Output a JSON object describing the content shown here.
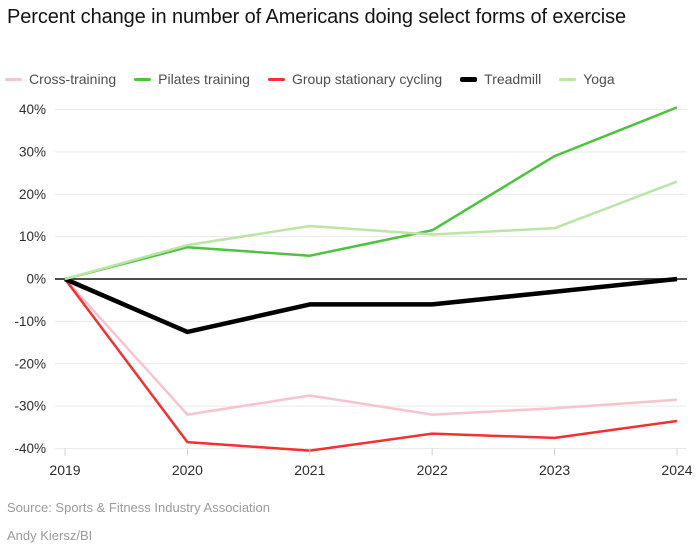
{
  "title": "Percent change in number of Americans doing select forms of exercise",
  "footer": {
    "source": "Source: Sports & Fitness Industry Association",
    "byline": "Andy Kiersz/BI"
  },
  "colors": {
    "background": "#ffffff",
    "grid": "#e9e9e9",
    "zero_line": "#4d4d4d",
    "tick": "#cfcfcf",
    "axis_text": "#2d2d2d",
    "legend_text": "#4d4d4d",
    "footer_text": "#9b9b9b",
    "title_text": "#131313"
  },
  "chart_data": {
    "type": "line",
    "title": "Percent change in number of Americans doing select forms of exercise",
    "xlabel": "",
    "ylabel": "",
    "x": [
      2019,
      2020,
      2021,
      2022,
      2023,
      2024
    ],
    "xtick_labels": [
      "2019",
      "2020",
      "2021",
      "2022",
      "2023",
      "2024"
    ],
    "yticks": [
      {
        "value": 40,
        "label": "40%"
      },
      {
        "value": 30,
        "label": "30%"
      },
      {
        "value": 20,
        "label": "20%"
      },
      {
        "value": 10,
        "label": "10%"
      },
      {
        "value": 0,
        "label": "0%"
      },
      {
        "value": -10,
        "label": "-10%"
      },
      {
        "value": -20,
        "label": "-20%"
      },
      {
        "value": -30,
        "label": "-30%"
      },
      {
        "value": -40,
        "label": "-40%"
      }
    ],
    "ylim": [
      -40,
      40
    ],
    "grid": true,
    "legend_position": "top",
    "series": [
      {
        "name": "Cross-training",
        "color": "#f9c3ce",
        "width": 2.5,
        "values": [
          0,
          -32,
          -27.5,
          -32,
          -30.5,
          -28.5
        ]
      },
      {
        "name": "Pilates training",
        "color": "#4bc43c",
        "width": 2.5,
        "values": [
          0,
          7.5,
          5.5,
          11.5,
          29,
          40.5
        ]
      },
      {
        "name": "Group stationary cycling",
        "color": "#f43030",
        "width": 2.5,
        "values": [
          0,
          -38.5,
          -40.5,
          -36.5,
          -37.5,
          -33.5
        ]
      },
      {
        "name": "Treadmill",
        "color": "#000000",
        "width": 4.5,
        "values": [
          0,
          -12.5,
          -6,
          -6,
          -3,
          0
        ]
      },
      {
        "name": "Yoga",
        "color": "#bae5a5",
        "width": 2.5,
        "values": [
          0,
          8,
          12.5,
          10.5,
          12,
          23
        ]
      }
    ]
  }
}
